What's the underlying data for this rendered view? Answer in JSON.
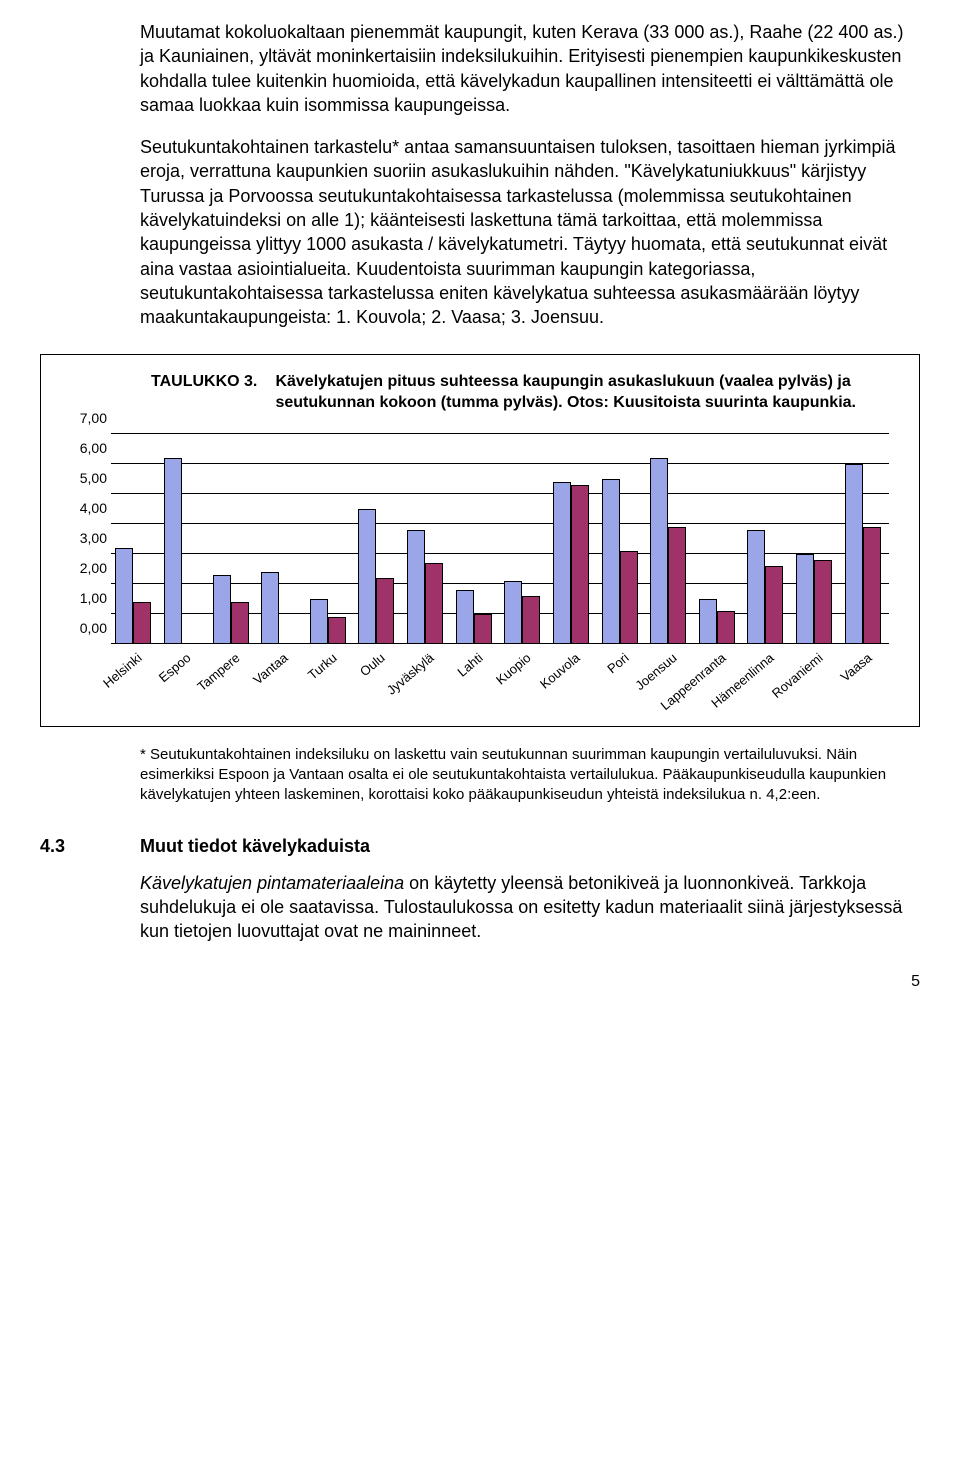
{
  "paragraphs": {
    "p1": "Muutamat kokoluokaltaan pienemmät kaupungit, kuten Kerava (33 000 as.), Raahe (22 400 as.) ja Kauniainen, yltävät moninkertaisiin indeksilukuihin. Erityisesti pienempien kaupunkikeskusten kohdalla tulee kuitenkin huomioida, että kävelykadun kaupallinen intensiteetti ei välttämättä ole samaa luokkaa kuin isommissa kaupungeissa.",
    "p2": "Seutukuntakohtainen tarkastelu* antaa samansuuntaisen tuloksen, tasoittaen hieman jyrkimpiä eroja, verrattuna kaupunkien suoriin asukaslukuihin nähden. \"Kävelykatuniukkuus\" kärjistyy Turussa ja Porvoossa seutukuntakohtaisessa tarkastelussa (molemmissa seutukohtainen kävelykatuindeksi on alle 1); käänteisesti laskettuna tämä tarkoittaa, että molemmissa kaupungeissa ylittyy 1000 asukasta / kävelykatumetri. Täytyy huomata, että seutukunnat eivät aina vastaa asiointialueita. Kuudentoista suurimman kaupungin kategoriassa, seutukuntakohtaisessa tarkastelussa eniten kävelykatua suhteessa asukasmäärään löytyy maakuntakaupungeista: 1. Kouvola; 2. Vaasa; 3. Joensuu."
  },
  "chart": {
    "caption_lead": "TAULUKKO 3.",
    "caption_rest": "Kävelykatujen pituus suhteessa kaupungin asukaslukuun (vaalea pylväs) ja seutukunnan kokoon (tumma pylväs). Otos: Kuusitoista suurinta kaupunkia.",
    "type": "bar",
    "ylim": [
      0,
      7
    ],
    "ytick_step": 1,
    "yticks": [
      "0,00",
      "1,00",
      "2,00",
      "3,00",
      "4,00",
      "5,00",
      "6,00",
      "7,00"
    ],
    "light_color": "#9aa6e8",
    "dark_color": "#a0326a",
    "grid_color": "#000000",
    "background_color": "#ffffff",
    "categories": [
      "Helsinki",
      "Espoo",
      "Tampere",
      "Vantaa",
      "Turku",
      "Oulu",
      "Jyväskylä",
      "Lahti",
      "Kuopio",
      "Kouvola",
      "Pori",
      "Joensuu",
      "Lappeenranta",
      "Hämeenlinna",
      "Rovaniemi",
      "Vaasa"
    ],
    "series_light": [
      3.2,
      6.2,
      2.3,
      2.4,
      1.5,
      4.5,
      3.8,
      1.8,
      2.1,
      5.4,
      5.5,
      6.2,
      1.5,
      3.8,
      3.0,
      6.0
    ],
    "series_dark": [
      1.4,
      null,
      1.4,
      null,
      0.9,
      2.2,
      2.7,
      1.0,
      1.6,
      5.3,
      3.1,
      3.9,
      1.1,
      2.6,
      2.8,
      3.9
    ]
  },
  "footnote_asterisk": "* ",
  "footnote": "Seutukuntakohtainen indeksiluku on laskettu vain seutukunnan suurimman kaupungin vertailuluvuksi. Näin esimerkiksi Espoon ja Vantaan osalta ei ole seutukuntakohtaista vertailulukua. Pääkaupunkiseudulla kaupunkien kävelykatujen yhteen laskeminen, korottaisi koko pääkaupunkiseudun yhteistä indeksilukua n. 4,2:een.",
  "section": {
    "num": "4.3",
    "title": "Muut tiedot kävelykaduista"
  },
  "p3_lead": "Kävelykatujen pintamateriaaleina",
  "p3_rest": " on käytetty yleensä betonikiveä ja luonnonkiveä. Tarkkoja suhdelukuja ei ole saatavissa. Tulostaulukossa on esitetty kadun materiaalit siinä järjestyksessä kun tietojen luovuttajat ovat ne maininneet.",
  "page_number": "5"
}
